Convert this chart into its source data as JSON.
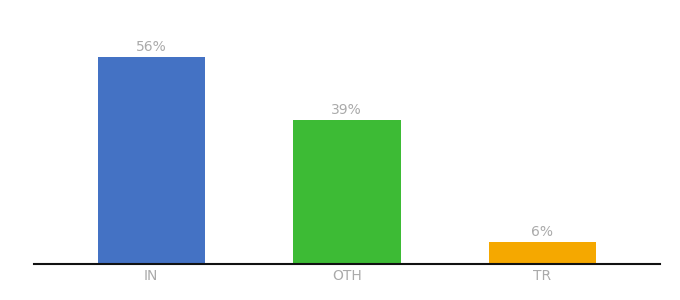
{
  "categories": [
    "IN",
    "OTH",
    "TR"
  ],
  "values": [
    56,
    39,
    6
  ],
  "bar_colors": [
    "#4472c4",
    "#3dbb35",
    "#f5a800"
  ],
  "labels": [
    "56%",
    "39%",
    "6%"
  ],
  "background_color": "#ffffff",
  "ylim": [
    0,
    65
  ],
  "label_fontsize": 10,
  "tick_fontsize": 10,
  "label_color": "#aaaaaa",
  "bar_width": 0.55
}
